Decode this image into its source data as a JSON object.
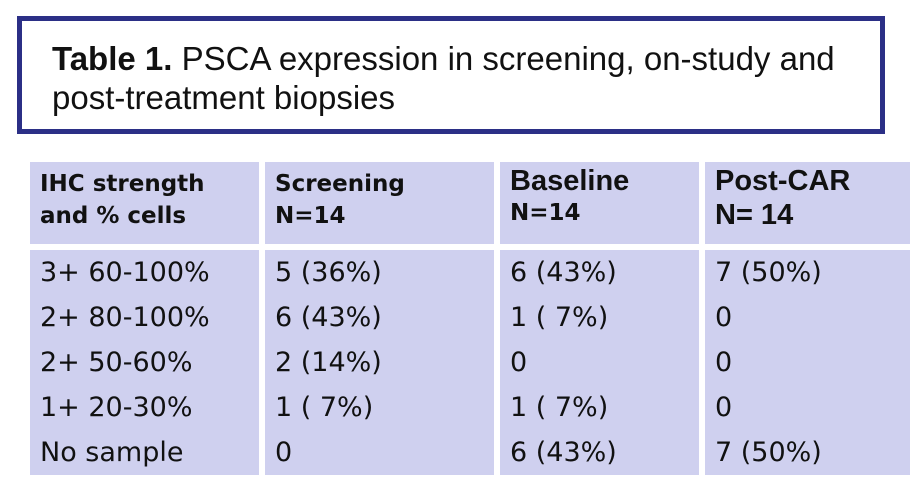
{
  "title": {
    "label": "Table 1.",
    "text": " PSCA expression in screening, on-study and post-treatment biopsies"
  },
  "table": {
    "headers": [
      {
        "line1": "IHC strength",
        "line2": "and % cells"
      },
      {
        "line1": "Screening",
        "line2": "N=14"
      },
      {
        "line1": "Baseline",
        "line2": "N=14"
      },
      {
        "line1": "Post-CAR",
        "line2": "N= 14"
      }
    ],
    "columns": [
      [
        "3+ 60-100%",
        "2+ 80-100%",
        "2+ 50-60%",
        "1+ 20-30%",
        "No sample"
      ],
      [
        "5 (36%)",
        "6 (43%)",
        "2 (14%)",
        "1 ( 7%)",
        "0"
      ],
      [
        "6 (43%)",
        "1 ( 7%)",
        "0",
        "1 ( 7%)",
        "6 (43%)"
      ],
      [
        "7 (50%)",
        "0",
        "0",
        "0",
        "7 (50%)"
      ]
    ]
  },
  "colors": {
    "border": "#2b2f86",
    "cell_fill": "#cfd0ef",
    "text": "#111111"
  }
}
